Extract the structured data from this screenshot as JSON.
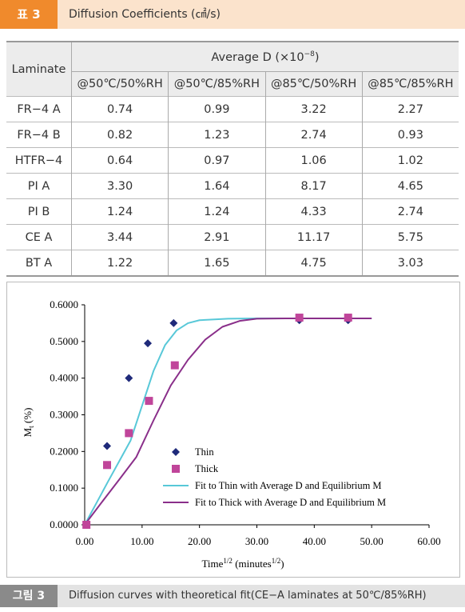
{
  "table_caption": {
    "tag": "표 3",
    "title": "Diffusion Coefficients (㎠/s)"
  },
  "table": {
    "row_header": "Laminate",
    "group_header": "Average D (×10",
    "group_header_exp": "−8",
    "group_header_close": ")",
    "columns": [
      "@50℃/50%RH",
      "@50℃/85%RH",
      "@85℃/50%RH",
      "@85℃/85%RH"
    ],
    "rows": [
      [
        "FR−4 A",
        "0.74",
        "0.99",
        "3.22",
        "2.27"
      ],
      [
        "FR−4 B",
        "0.82",
        "1.23",
        "2.74",
        "0.93"
      ],
      [
        "HTFR−4",
        "0.64",
        "0.97",
        "1.06",
        "1.02"
      ],
      [
        "PI A",
        "3.30",
        "1.64",
        "8.17",
        "4.65"
      ],
      [
        "PI B",
        "1.24",
        "1.24",
        "4.33",
        "2.74"
      ],
      [
        "CE A",
        "3.44",
        "2.91",
        "11.17",
        "5.75"
      ],
      [
        "BT A",
        "1.22",
        "1.65",
        "4.75",
        "3.03"
      ]
    ]
  },
  "chart_data": {
    "type": "scatter",
    "xlabel": "Time",
    "xlabel_sup": "1/2",
    "xlabel_units": " (minutes",
    "xlabel_units_sup": "1/2",
    "xlabel_close": ")",
    "ylabel": "M",
    "ylabel_sub": "t",
    "ylabel_units": " (%)",
    "xlim": [
      0,
      60
    ],
    "ylim": [
      0,
      0.6
    ],
    "x_ticks": [
      "0.00",
      "10.00",
      "20.00",
      "30.00",
      "40.00",
      "50.00",
      "60.00"
    ],
    "y_ticks": [
      "0.0000",
      "0.1000",
      "0.2000",
      "0.3000",
      "0.4000",
      "0.5000",
      "0.6000"
    ],
    "legend_position": "center-right",
    "series": [
      {
        "name": "Thin",
        "marker": "diamond",
        "color": "#1f2a7a",
        "x": [
          0.3,
          3.9,
          7.7,
          11.0,
          15.5,
          37.4,
          45.9
        ],
        "y": [
          0.0,
          0.215,
          0.4,
          0.495,
          0.55,
          0.558,
          0.558
        ]
      },
      {
        "name": "Thick",
        "marker": "square",
        "color": "#c0459a",
        "x": [
          0.3,
          3.9,
          7.7,
          11.2,
          15.7,
          37.4,
          45.9
        ],
        "y": [
          0.0,
          0.163,
          0.25,
          0.338,
          0.435,
          0.565,
          0.565
        ]
      },
      {
        "name": "Fit to Thin with Average D and Equilibrium M",
        "line": true,
        "color": "#58c8d8",
        "x": [
          0,
          2,
          4,
          6,
          8,
          10,
          12,
          14,
          16,
          18,
          20,
          25,
          30,
          40,
          50
        ],
        "y": [
          0,
          0.058,
          0.116,
          0.173,
          0.23,
          0.325,
          0.42,
          0.49,
          0.53,
          0.55,
          0.558,
          0.562,
          0.563,
          0.563,
          0.563
        ]
      },
      {
        "name": "Fit to Thick with Average D and Equilibrium M",
        "line": true,
        "color": "#8a2f8a",
        "x": [
          0,
          3,
          6,
          9,
          12,
          15,
          18,
          21,
          24,
          27,
          30,
          35,
          40,
          50
        ],
        "y": [
          0,
          0.062,
          0.123,
          0.185,
          0.285,
          0.38,
          0.45,
          0.505,
          0.54,
          0.556,
          0.562,
          0.563,
          0.563,
          0.563
        ]
      }
    ]
  },
  "figure_caption": {
    "tag": "그림 3",
    "title": "Diffusion curves with theoretical fit(CE−A laminates at 50℃/85%RH)"
  }
}
